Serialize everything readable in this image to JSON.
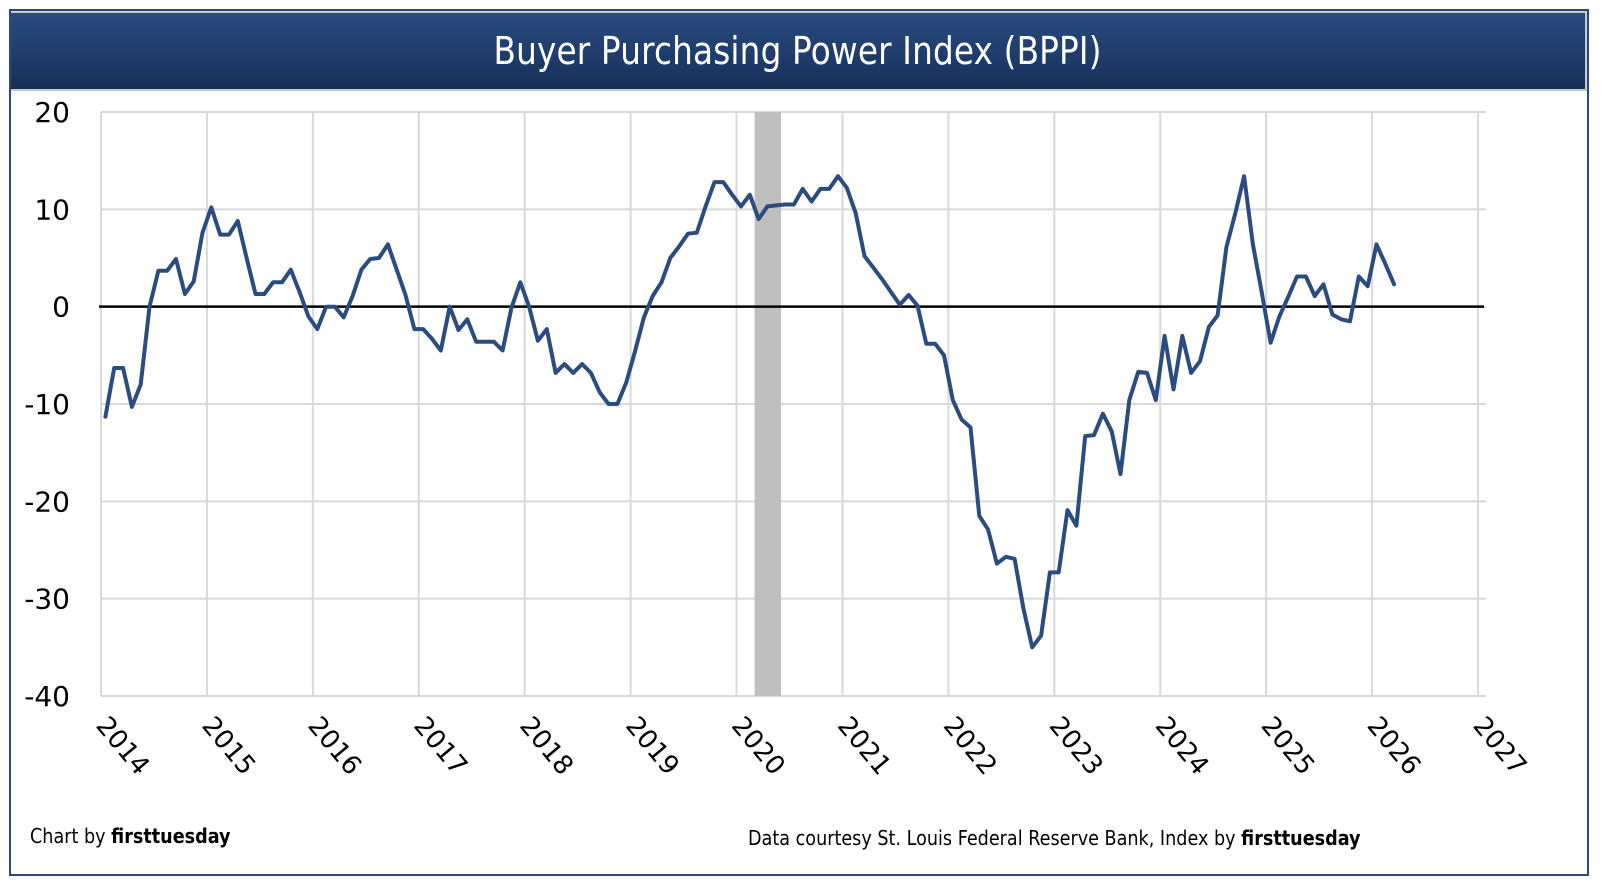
{
  "chart_data": {
    "type": "line",
    "title": "Buyer Purchasing Power Index (BPPI)",
    "xlabel": "",
    "ylabel": "",
    "ylim": [
      -40,
      20
    ],
    "yticks": [
      20,
      10,
      0,
      -10,
      -20,
      -30,
      -40
    ],
    "xlim": [
      2014,
      2027
    ],
    "xticks": [
      "2014",
      "2015",
      "2016",
      "2017",
      "2018",
      "2019",
      "2020",
      "2021",
      "2022",
      "2023",
      "2024",
      "2025",
      "2026",
      "2027"
    ],
    "grid": true,
    "zero_line": true,
    "shaded_regions": [
      {
        "label": "recession",
        "start": 2020.17,
        "end": 2020.42,
        "color": "#bfbfbf"
      }
    ],
    "series": [
      {
        "name": "BPPI",
        "color": "#2b4c7e",
        "start": "2014-01",
        "frequency": "monthly",
        "values": [
          -11.3,
          -6.3,
          -6.3,
          -10.3,
          -8.0,
          0.0,
          3.7,
          3.7,
          4.9,
          1.3,
          2.6,
          7.6,
          10.2,
          7.4,
          7.4,
          8.8,
          5.0,
          1.3,
          1.3,
          2.5,
          2.5,
          3.8,
          1.5,
          -1.0,
          -2.3,
          0.0,
          0.0,
          -1.1,
          1.1,
          3.8,
          4.9,
          5.0,
          6.4,
          3.8,
          1.2,
          -2.3,
          -2.3,
          -3.3,
          -4.5,
          0.0,
          -2.4,
          -1.3,
          -3.6,
          -3.6,
          -3.6,
          -4.5,
          -0.1,
          2.5,
          0.0,
          -3.5,
          -2.3,
          -6.8,
          -5.9,
          -6.8,
          -5.9,
          -6.8,
          -8.8,
          -10.0,
          -10.0,
          -7.8,
          -4.6,
          -1.1,
          1.1,
          2.5,
          5.0,
          6.2,
          7.5,
          7.6,
          10.3,
          12.8,
          12.8,
          11.5,
          10.3,
          11.5,
          9.0,
          10.3,
          10.4,
          10.5,
          10.5,
          12.1,
          10.8,
          12.1,
          12.1,
          13.4,
          12.2,
          9.6,
          5.2,
          4.0,
          2.8,
          1.5,
          0.2,
          1.2,
          0.1,
          -3.8,
          -3.8,
          -5.0,
          -9.6,
          -11.6,
          -12.4,
          -21.5,
          -22.9,
          -26.4,
          -25.7,
          -25.9,
          -31.0,
          -35.0,
          -33.8,
          -27.3,
          -27.3,
          -20.9,
          -22.5,
          -13.3,
          -13.2,
          -11.0,
          -12.8,
          -17.2,
          -9.6,
          -6.7,
          -6.8,
          -9.6,
          -3.0,
          -8.5,
          -3.0,
          -6.8,
          -5.6,
          -2.1,
          -0.9,
          6.1,
          9.6,
          13.4,
          6.4,
          1.5,
          -3.7,
          -1.0,
          1.0,
          3.1,
          3.1,
          1.1,
          2.3,
          -0.8,
          -1.3,
          -1.5,
          3.1,
          2.1,
          6.4,
          4.4,
          2.3
        ]
      }
    ]
  },
  "footer": {
    "left_prefix": "Chart by ",
    "left_brand": "firsttuesday",
    "right_prefix": "Data courtesy St. Louis Federal Reserve Bank, Index by ",
    "right_brand": "firsttuesday"
  },
  "colors": {
    "title_bar": "#1f3d6c",
    "line": "#2b4c7e",
    "gridline": "#d9d9d9",
    "zero_line": "#000000",
    "recession_band": "#bfbfbf",
    "frame_border": "#2a4a7f"
  }
}
